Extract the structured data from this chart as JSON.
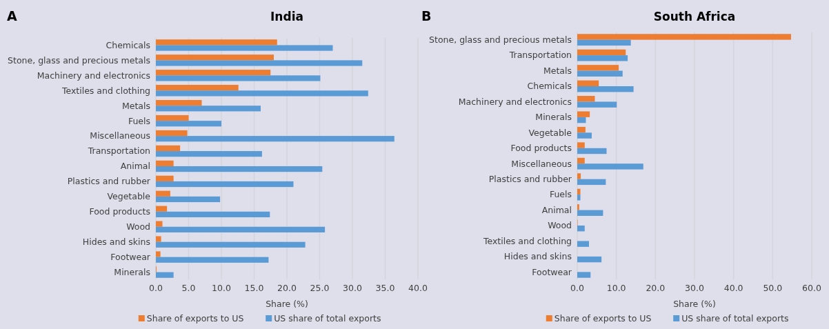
{
  "chart_data": [
    {
      "type": "bar",
      "orientation": "horizontal",
      "title": "India",
      "annotations": [
        "A"
      ],
      "xlabel": "Share (%)",
      "categories": [
        "Chemicals",
        "Stone, glass and precious metals",
        "Machinery and electronics",
        "Textiles and clothing",
        "Metals",
        "Fuels",
        "Miscellaneous",
        "Transportation",
        "Animal",
        "Plastics and rubber",
        "Vegetable",
        "Food products",
        "Wood",
        "Hides and skins",
        "Footwear",
        "Minerals"
      ],
      "series": [
        {
          "name": "Share of exports to US",
          "color": "#ed7d31",
          "values": [
            18.5,
            18.0,
            17.5,
            12.6,
            7.0,
            5.0,
            4.8,
            3.7,
            2.7,
            2.7,
            2.2,
            1.7,
            1.0,
            0.8,
            0.7,
            0.1
          ]
        },
        {
          "name": "US share of total exports",
          "color": "#5b9bd5",
          "values": [
            27.0,
            31.5,
            25.1,
            32.4,
            16.0,
            10.0,
            36.4,
            16.2,
            25.4,
            21.0,
            9.8,
            17.4,
            25.8,
            22.8,
            17.2,
            2.7
          ]
        }
      ],
      "xlim": [
        0,
        40
      ],
      "xticks": [
        {
          "value": 0,
          "label": "0.0"
        },
        {
          "value": 5,
          "label": "5.0"
        },
        {
          "value": 10,
          "label": "10.0"
        },
        {
          "value": 15,
          "label": "15.0"
        },
        {
          "value": 20,
          "label": "20.0"
        },
        {
          "value": 25,
          "label": "25.0"
        },
        {
          "value": 30,
          "label": "30.0"
        },
        {
          "value": 35,
          "label": "35.0"
        },
        {
          "value": 40,
          "label": "40.0"
        }
      ],
      "grid": "x",
      "legend": "bottom"
    },
    {
      "type": "bar",
      "orientation": "horizontal",
      "title": "South Africa",
      "annotations": [
        "B"
      ],
      "xlabel": "Share (%)",
      "categories": [
        "Stone, glass and precious metals",
        "Transportation",
        "Metals",
        "Chemicals",
        "Machinery and electronics",
        "Minerals",
        "Vegetable",
        "Food products",
        "Miscellaneous",
        "Plastics and rubber",
        "Fuels",
        "Animal",
        "Wood",
        "Textiles and clothing",
        "Hides and skins",
        "Footwear"
      ],
      "series": [
        {
          "name": "Share of exports to US",
          "color": "#ed7d31",
          "values": [
            54.7,
            12.4,
            10.6,
            5.5,
            4.5,
            3.2,
            2.1,
            1.9,
            1.9,
            0.9,
            0.8,
            0.5,
            0.1,
            0,
            0,
            0
          ]
        },
        {
          "name": "US share of total exports",
          "color": "#5b9bd5",
          "values": [
            13.7,
            12.9,
            11.6,
            14.4,
            10.1,
            2.2,
            3.7,
            7.5,
            16.9,
            7.3,
            0.8,
            6.6,
            1.9,
            3.0,
            6.2,
            3.4
          ]
        }
      ],
      "xlim": [
        0,
        60
      ],
      "xticks": [
        {
          "value": 0,
          "label": "0.0"
        },
        {
          "value": 10,
          "label": "10.0"
        },
        {
          "value": 20,
          "label": "20.0"
        },
        {
          "value": 30,
          "label": "30.0"
        },
        {
          "value": 40,
          "label": "40.0"
        },
        {
          "value": 50,
          "label": "50.0"
        },
        {
          "value": 60,
          "label": "60.0"
        }
      ],
      "grid": "x",
      "legend": "bottom"
    }
  ]
}
